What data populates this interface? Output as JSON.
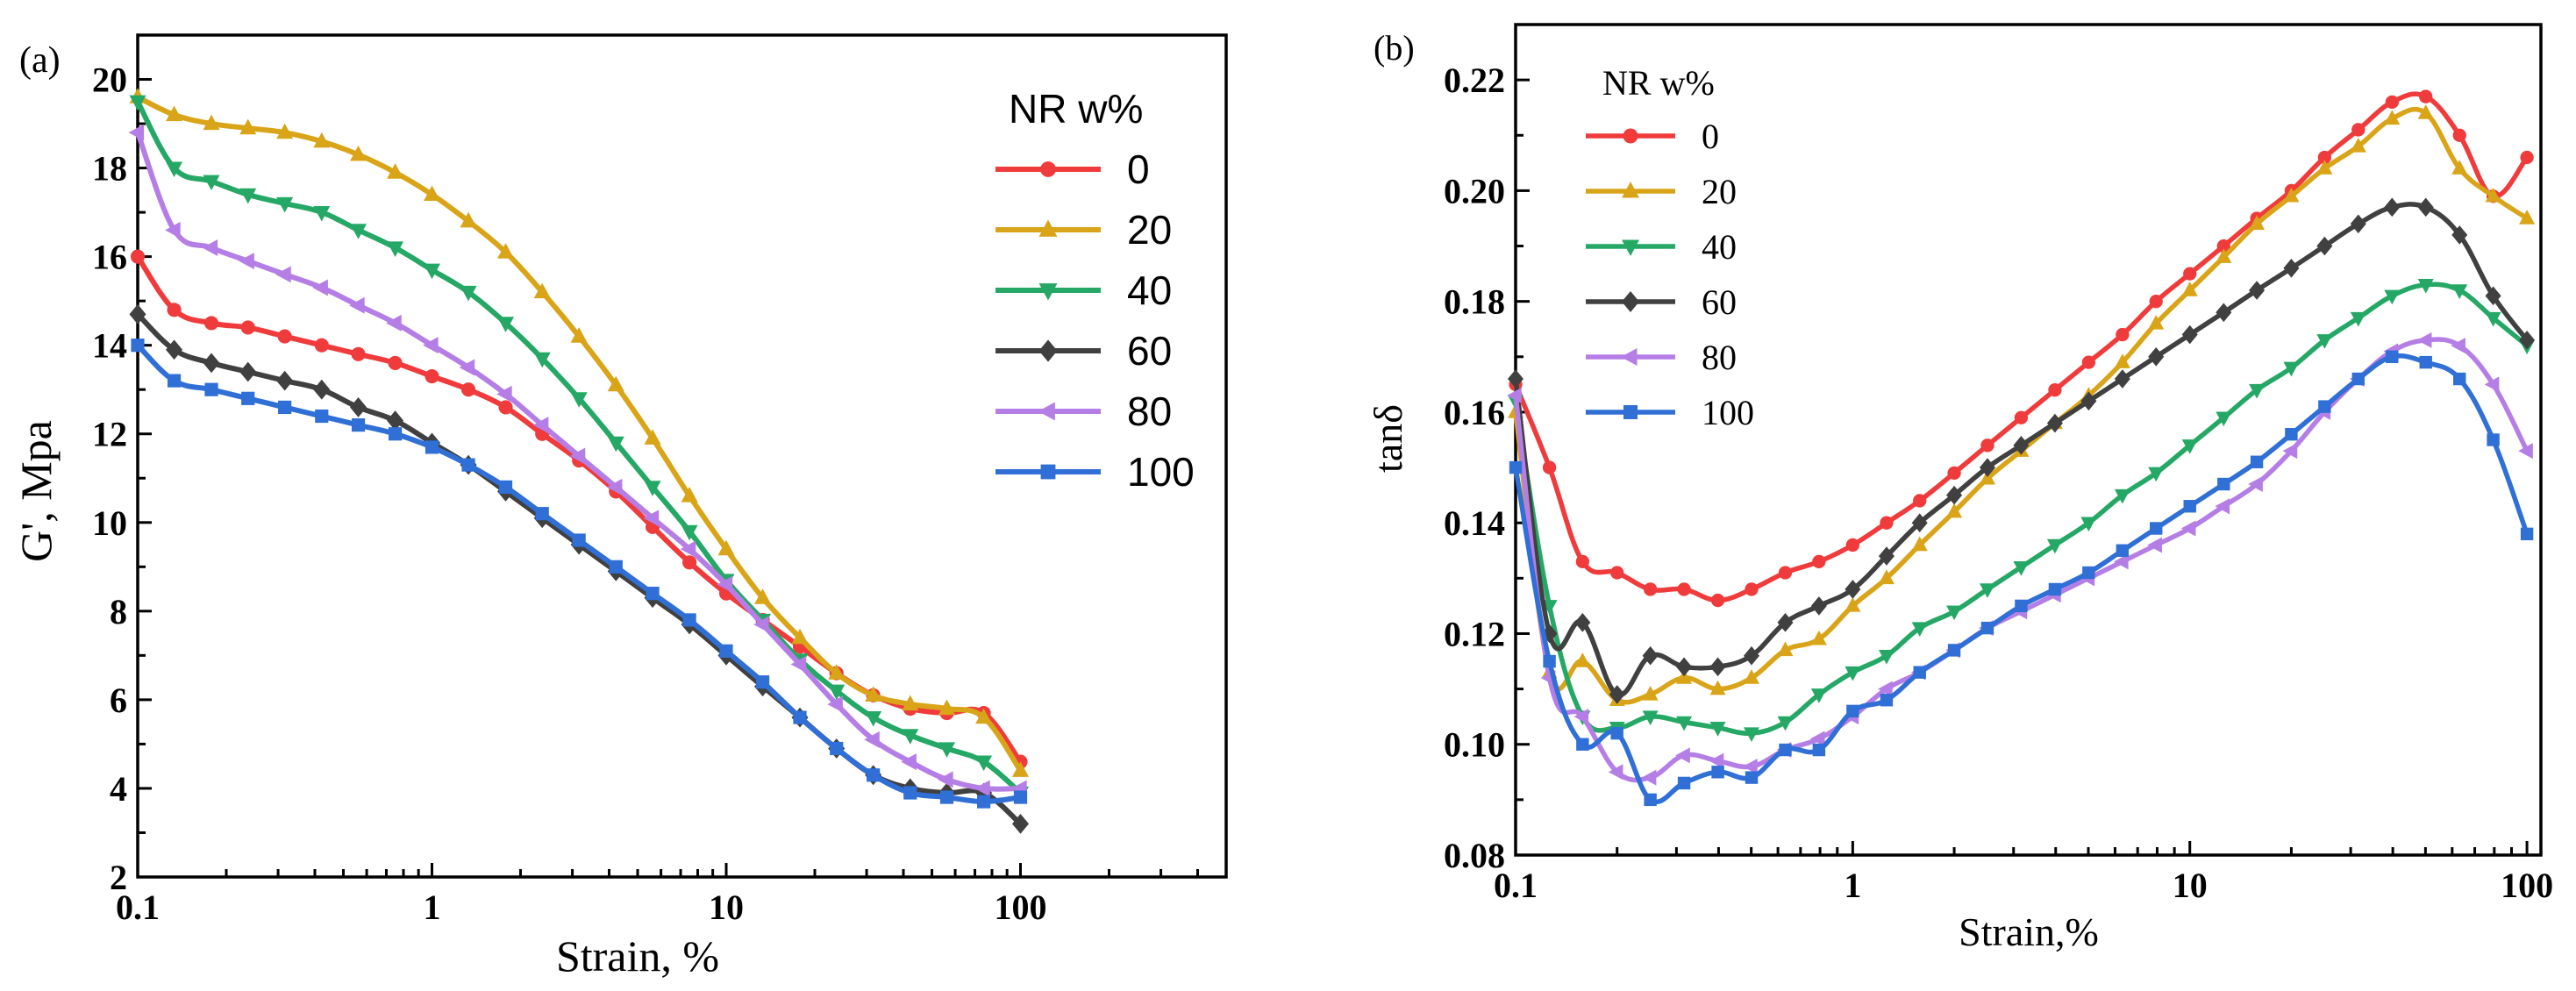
{
  "chart_data": [
    {
      "panel_label": "(a)",
      "type": "line",
      "xscale": "log",
      "xlabel": "Strain,  %",
      "ylabel": "G', Mpa",
      "xlim": [
        0.1,
        500
      ],
      "ylim": [
        2,
        21
      ],
      "xticks": [
        0.1,
        1,
        10,
        100
      ],
      "xtick_labels": [
        "0.1",
        "1",
        "10",
        "100"
      ],
      "yticks": [
        2,
        4,
        6,
        8,
        10,
        12,
        14,
        16,
        18,
        20
      ],
      "ytick_labels": [
        "2",
        "4",
        "6",
        "8",
        "10",
        "12",
        "14",
        "16",
        "18",
        "20"
      ],
      "legend_title": "NR  w%",
      "legend_position": "top-right",
      "series": [
        {
          "name": "0",
          "color": "#ef3b3b",
          "marker": "circle",
          "x": [
            0.1,
            0.133,
            0.178,
            0.237,
            0.316,
            0.422,
            0.562,
            0.75,
            1,
            1.33,
            1.78,
            2.37,
            3.16,
            4.22,
            5.62,
            7.5,
            10,
            13.3,
            17.8,
            23.7,
            31.6,
            42.2,
            56.2,
            75,
            100
          ],
          "y": [
            16.0,
            14.8,
            14.5,
            14.4,
            14.2,
            14.0,
            13.8,
            13.6,
            13.3,
            13.0,
            12.6,
            12.0,
            11.4,
            10.7,
            9.9,
            9.1,
            8.4,
            7.8,
            7.2,
            6.6,
            6.1,
            5.8,
            5.7,
            5.7,
            4.6
          ]
        },
        {
          "name": "20",
          "color": "#d9a418",
          "marker": "triangle-up",
          "x": [
            0.1,
            0.133,
            0.178,
            0.237,
            0.316,
            0.422,
            0.562,
            0.75,
            1,
            1.33,
            1.78,
            2.37,
            3.16,
            4.22,
            5.62,
            7.5,
            10,
            13.3,
            17.8,
            23.7,
            31.6,
            42.2,
            56.2,
            75,
            100
          ],
          "y": [
            19.6,
            19.2,
            19.0,
            18.9,
            18.8,
            18.6,
            18.3,
            17.9,
            17.4,
            16.8,
            16.1,
            15.2,
            14.2,
            13.1,
            11.9,
            10.6,
            9.4,
            8.3,
            7.4,
            6.6,
            6.1,
            5.9,
            5.8,
            5.6,
            4.4
          ]
        },
        {
          "name": "40",
          "color": "#25a865",
          "marker": "triangle-down",
          "x": [
            0.1,
            0.133,
            0.178,
            0.237,
            0.316,
            0.422,
            0.562,
            0.75,
            1,
            1.33,
            1.78,
            2.37,
            3.16,
            4.22,
            5.62,
            7.5,
            10,
            13.3,
            17.8,
            23.7,
            31.6,
            42.2,
            56.2,
            75,
            100
          ],
          "y": [
            19.5,
            18.0,
            17.7,
            17.4,
            17.2,
            17.0,
            16.6,
            16.2,
            15.7,
            15.2,
            14.5,
            13.7,
            12.8,
            11.8,
            10.8,
            9.8,
            8.7,
            7.8,
            6.9,
            6.2,
            5.6,
            5.2,
            4.9,
            4.6,
            3.9
          ]
        },
        {
          "name": "60",
          "color": "#404040",
          "marker": "diamond",
          "x": [
            0.1,
            0.133,
            0.178,
            0.237,
            0.316,
            0.422,
            0.562,
            0.75,
            1,
            1.33,
            1.78,
            2.37,
            3.16,
            4.22,
            5.62,
            7.5,
            10,
            13.3,
            17.8,
            23.7,
            31.6,
            42.2,
            56.2,
            75,
            100
          ],
          "y": [
            14.7,
            13.9,
            13.6,
            13.4,
            13.2,
            13.0,
            12.6,
            12.3,
            11.8,
            11.3,
            10.7,
            10.1,
            9.5,
            8.9,
            8.3,
            7.7,
            7.0,
            6.3,
            5.6,
            4.9,
            4.3,
            4.0,
            3.9,
            3.9,
            3.2
          ]
        },
        {
          "name": "80",
          "color": "#b57ee6",
          "marker": "triangle-left",
          "x": [
            0.1,
            0.133,
            0.178,
            0.237,
            0.316,
            0.422,
            0.562,
            0.75,
            1,
            1.33,
            1.78,
            2.37,
            3.16,
            4.22,
            5.62,
            7.5,
            10,
            13.3,
            17.8,
            23.7,
            31.6,
            42.2,
            56.2,
            75,
            100
          ],
          "y": [
            18.8,
            16.6,
            16.2,
            15.9,
            15.6,
            15.3,
            14.9,
            14.5,
            14.0,
            13.5,
            12.9,
            12.2,
            11.5,
            10.8,
            10.1,
            9.4,
            8.6,
            7.7,
            6.8,
            5.9,
            5.1,
            4.6,
            4.2,
            4.0,
            4.0
          ]
        },
        {
          "name": "100",
          "color": "#2f6fd6",
          "marker": "square",
          "x": [
            0.1,
            0.133,
            0.178,
            0.237,
            0.316,
            0.422,
            0.562,
            0.75,
            1,
            1.33,
            1.78,
            2.37,
            3.16,
            4.22,
            5.62,
            7.5,
            10,
            13.3,
            17.8,
            23.7,
            31.6,
            42.2,
            56.2,
            75,
            100
          ],
          "y": [
            14.0,
            13.2,
            13.0,
            12.8,
            12.6,
            12.4,
            12.2,
            12.0,
            11.7,
            11.3,
            10.8,
            10.2,
            9.6,
            9.0,
            8.4,
            7.8,
            7.1,
            6.4,
            5.6,
            4.9,
            4.3,
            3.9,
            3.8,
            3.7,
            3.8
          ]
        }
      ]
    },
    {
      "panel_label": "(b)",
      "type": "line",
      "xscale": "log",
      "xlabel": "Strain,%",
      "ylabel": "tanδ",
      "xlim": [
        0.1,
        110
      ],
      "ylim": [
        0.08,
        0.23
      ],
      "xticks": [
        0.1,
        1,
        10,
        100
      ],
      "xtick_labels": [
        "0.1",
        "1",
        "10",
        "100"
      ],
      "yticks": [
        0.08,
        0.1,
        0.12,
        0.14,
        0.16,
        0.18,
        0.2,
        0.22
      ],
      "ytick_labels": [
        "0.08",
        "0.10",
        "0.12",
        "0.14",
        "0.16",
        "0.18",
        "0.20",
        "0.22"
      ],
      "legend_title": "NR  w%",
      "legend_position": "top-left",
      "series": [
        {
          "name": "0",
          "color": "#ef3b3b",
          "marker": "circle",
          "x": [
            0.1,
            0.126,
            0.158,
            0.2,
            0.251,
            0.316,
            0.398,
            0.501,
            0.631,
            0.794,
            1,
            1.26,
            1.58,
            2,
            2.51,
            3.16,
            3.98,
            5.01,
            6.31,
            7.94,
            10,
            12.6,
            15.8,
            20,
            25.1,
            31.6,
            39.8,
            50.1,
            63.1,
            79.4,
            100
          ],
          "y": [
            0.165,
            0.15,
            0.133,
            0.131,
            0.128,
            0.128,
            0.126,
            0.128,
            0.131,
            0.133,
            0.136,
            0.14,
            0.144,
            0.149,
            0.154,
            0.159,
            0.164,
            0.169,
            0.174,
            0.18,
            0.185,
            0.19,
            0.195,
            0.2,
            0.206,
            0.211,
            0.216,
            0.217,
            0.21,
            0.199,
            0.206
          ]
        },
        {
          "name": "20",
          "color": "#d9a418",
          "marker": "triangle-up",
          "x": [
            0.1,
            0.126,
            0.158,
            0.2,
            0.251,
            0.316,
            0.398,
            0.501,
            0.631,
            0.794,
            1,
            1.26,
            1.58,
            2,
            2.51,
            3.16,
            3.98,
            5.01,
            6.31,
            7.94,
            10,
            12.6,
            15.8,
            20,
            25.1,
            31.6,
            39.8,
            50.1,
            63.1,
            79.4,
            100
          ],
          "y": [
            0.16,
            0.113,
            0.115,
            0.108,
            0.109,
            0.112,
            0.11,
            0.112,
            0.117,
            0.119,
            0.125,
            0.13,
            0.136,
            0.142,
            0.148,
            0.153,
            0.158,
            0.163,
            0.169,
            0.176,
            0.182,
            0.188,
            0.194,
            0.199,
            0.204,
            0.208,
            0.213,
            0.214,
            0.204,
            0.199,
            0.195
          ]
        },
        {
          "name": "40",
          "color": "#25a865",
          "marker": "triangle-down",
          "x": [
            0.1,
            0.126,
            0.158,
            0.2,
            0.251,
            0.316,
            0.398,
            0.501,
            0.631,
            0.794,
            1,
            1.26,
            1.58,
            2,
            2.51,
            3.16,
            3.98,
            5.01,
            6.31,
            7.94,
            10,
            12.6,
            15.8,
            20,
            25.1,
            31.6,
            39.8,
            50.1,
            63.1,
            79.4,
            100
          ],
          "y": [
            0.162,
            0.125,
            0.105,
            0.103,
            0.105,
            0.104,
            0.103,
            0.102,
            0.104,
            0.109,
            0.113,
            0.116,
            0.121,
            0.124,
            0.128,
            0.132,
            0.136,
            0.14,
            0.145,
            0.149,
            0.154,
            0.159,
            0.164,
            0.168,
            0.173,
            0.177,
            0.181,
            0.183,
            0.182,
            0.177,
            0.172
          ]
        },
        {
          "name": "60",
          "color": "#404040",
          "marker": "diamond",
          "x": [
            0.1,
            0.126,
            0.158,
            0.2,
            0.251,
            0.316,
            0.398,
            0.501,
            0.631,
            0.794,
            1,
            1.26,
            1.58,
            2,
            2.51,
            3.16,
            3.98,
            5.01,
            6.31,
            7.94,
            10,
            12.6,
            15.8,
            20,
            25.1,
            31.6,
            39.8,
            50.1,
            63.1,
            79.4,
            100
          ],
          "y": [
            0.166,
            0.12,
            0.122,
            0.109,
            0.116,
            0.114,
            0.114,
            0.116,
            0.122,
            0.125,
            0.128,
            0.134,
            0.14,
            0.145,
            0.15,
            0.154,
            0.158,
            0.162,
            0.166,
            0.17,
            0.174,
            0.178,
            0.182,
            0.186,
            0.19,
            0.194,
            0.197,
            0.197,
            0.192,
            0.181,
            0.173
          ]
        },
        {
          "name": "80",
          "color": "#b57ee6",
          "marker": "triangle-left",
          "x": [
            0.1,
            0.126,
            0.158,
            0.2,
            0.251,
            0.316,
            0.398,
            0.501,
            0.631,
            0.794,
            1,
            1.26,
            1.58,
            2,
            2.51,
            3.16,
            3.98,
            5.01,
            6.31,
            7.94,
            10,
            12.6,
            15.8,
            20,
            25.1,
            31.6,
            39.8,
            50.1,
            63.1,
            79.4,
            100
          ],
          "y": [
            0.163,
            0.112,
            0.105,
            0.095,
            0.094,
            0.098,
            0.097,
            0.096,
            0.099,
            0.101,
            0.105,
            0.11,
            0.113,
            0.117,
            0.121,
            0.124,
            0.127,
            0.13,
            0.133,
            0.136,
            0.139,
            0.143,
            0.147,
            0.153,
            0.16,
            0.166,
            0.171,
            0.173,
            0.172,
            0.165,
            0.153
          ]
        },
        {
          "name": "100",
          "color": "#2f6fd6",
          "marker": "square",
          "x": [
            0.1,
            0.126,
            0.158,
            0.2,
            0.251,
            0.316,
            0.398,
            0.501,
            0.631,
            0.794,
            1,
            1.26,
            1.58,
            2,
            2.51,
            3.16,
            3.98,
            5.01,
            6.31,
            7.94,
            10,
            12.6,
            15.8,
            20,
            25.1,
            31.6,
            39.8,
            50.1,
            63.1,
            79.4,
            100
          ],
          "y": [
            0.15,
            0.115,
            0.1,
            0.102,
            0.09,
            0.093,
            0.095,
            0.094,
            0.099,
            0.099,
            0.106,
            0.108,
            0.113,
            0.117,
            0.121,
            0.125,
            0.128,
            0.131,
            0.135,
            0.139,
            0.143,
            0.147,
            0.151,
            0.156,
            0.161,
            0.166,
            0.17,
            0.169,
            0.166,
            0.155,
            0.138
          ]
        }
      ]
    }
  ]
}
